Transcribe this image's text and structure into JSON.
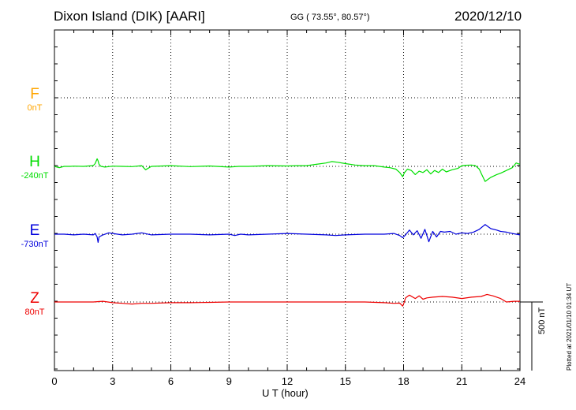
{
  "header": {
    "title": "Dixon Island (DIK)  [AARI]",
    "coords": "GG ( 73.55°,  80.57°)",
    "date": "2020/12/10"
  },
  "footer": {
    "plotted": "Plotted at 2021/01/10 01:34 UT"
  },
  "chart_data": {
    "type": "line",
    "title": "Dixon Island (DIK)  [AARI]",
    "xlabel": "U T (hour)",
    "xlim": [
      0,
      24
    ],
    "xticks": [
      "0",
      "3",
      "6",
      "9",
      "12",
      "15",
      "18",
      "21",
      "24"
    ],
    "grid": true,
    "scale_bar": {
      "label": "500 nT",
      "value_nT": 500
    },
    "series": [
      {
        "name": "F",
        "baseline_label": "0nT",
        "baseline_nT": 0,
        "color": "#ffa500",
        "x": [],
        "y": []
      },
      {
        "name": "H",
        "baseline_label": "-240nT",
        "baseline_nT": -240,
        "color": "#00e000",
        "x": [
          0,
          0.25,
          0.5,
          0.8,
          1,
          1.5,
          2,
          2.1,
          2.2,
          2.25,
          2.3,
          2.4,
          2.6,
          3,
          3.5,
          4,
          4.5,
          4.7,
          5,
          6,
          7,
          8,
          9,
          9.5,
          10,
          11,
          12,
          12.5,
          13,
          13.5,
          14,
          14.3,
          14.6,
          15,
          15.5,
          16,
          16.5,
          17,
          17.3,
          17.6,
          17.8,
          17.95,
          18.05,
          18.2,
          18.4,
          18.6,
          18.8,
          19,
          19.2,
          19.4,
          19.6,
          19.8,
          20,
          20.2,
          20.5,
          20.8,
          21,
          21.2,
          21.5,
          21.7,
          21.9,
          22,
          22.2,
          22.5,
          22.8,
          23,
          23.3,
          23.6,
          23.8,
          24
        ],
        "y": [
          0,
          -10,
          0,
          0,
          2,
          0,
          6,
          20,
          55,
          40,
          15,
          0,
          -5,
          2,
          0,
          -2,
          5,
          -25,
          0,
          5,
          -2,
          3,
          -5,
          0,
          0,
          5,
          3,
          5,
          5,
          15,
          25,
          35,
          30,
          20,
          10,
          5,
          5,
          -5,
          -10,
          -20,
          -45,
          -75,
          -45,
          -20,
          -30,
          -60,
          -35,
          -45,
          -25,
          -55,
          -30,
          -45,
          -20,
          -40,
          -25,
          -15,
          5,
          8,
          10,
          5,
          -20,
          -50,
          -110,
          -80,
          -60,
          -50,
          -30,
          -10,
          25,
          15
        ]
      },
      {
        "name": "E",
        "baseline_label": "-730nT",
        "baseline_nT": -730,
        "color": "#0000dd",
        "x": [
          0,
          0.5,
          1,
          1.5,
          2,
          2.1,
          2.2,
          2.25,
          2.3,
          2.5,
          2.8,
          3,
          3.5,
          4,
          4.5,
          5,
          6,
          7,
          8,
          9,
          9.3,
          9.6,
          10,
          11,
          12,
          13,
          14,
          14.5,
          15,
          16,
          17,
          17.5,
          17.8,
          17.95,
          18.1,
          18.3,
          18.5,
          18.7,
          18.9,
          19.1,
          19.3,
          19.5,
          19.7,
          19.9,
          20.1,
          20.4,
          20.7,
          21,
          21.3,
          21.6,
          21.9,
          22.2,
          22.5,
          22.8,
          23,
          23.3,
          23.6,
          24
        ],
        "y": [
          0,
          0,
          -5,
          0,
          -5,
          5,
          -20,
          -60,
          -20,
          -5,
          10,
          5,
          -5,
          0,
          10,
          -5,
          0,
          0,
          -5,
          0,
          -10,
          0,
          -5,
          0,
          5,
          0,
          -5,
          -10,
          -5,
          0,
          0,
          5,
          -10,
          -25,
          -5,
          30,
          -5,
          25,
          -30,
          35,
          -55,
          20,
          -20,
          20,
          15,
          20,
          0,
          10,
          5,
          15,
          35,
          70,
          40,
          30,
          20,
          15,
          5,
          -5
        ]
      },
      {
        "name": "Z",
        "baseline_label": "80nT",
        "baseline_nT": 80,
        "color": "#ee0000",
        "x": [
          0,
          1,
          2,
          2.5,
          3,
          3.5,
          4,
          4.5,
          5,
          6,
          7,
          8,
          9,
          10,
          11,
          12,
          13,
          14,
          15,
          16,
          17,
          17.5,
          17.8,
          17.95,
          18,
          18.1,
          18.3,
          18.6,
          18.8,
          19,
          19.2,
          19.5,
          20,
          20.5,
          21,
          21.5,
          22,
          22.3,
          22.6,
          23,
          23.3,
          23.7,
          24
        ],
        "y": [
          0,
          0,
          0,
          5,
          -5,
          -10,
          -15,
          -10,
          -10,
          -5,
          -5,
          -3,
          0,
          0,
          0,
          0,
          0,
          0,
          0,
          0,
          -5,
          -10,
          -8,
          -30,
          -15,
          30,
          50,
          25,
          45,
          20,
          30,
          35,
          40,
          35,
          25,
          35,
          40,
          55,
          45,
          25,
          0,
          5,
          5
        ]
      }
    ]
  }
}
